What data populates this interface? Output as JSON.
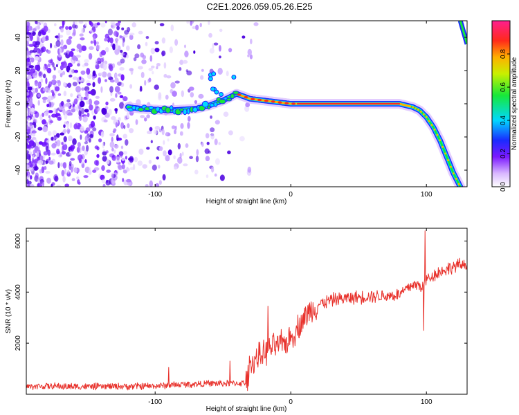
{
  "title": "C2E1.2026.059.05.26.E25",
  "chart_data": [
    {
      "type": "heatmap",
      "title": "C2E1.2026.059.05.26.E25",
      "xlabel": "Height of straight line (km)",
      "ylabel": "Frequency (Hz)",
      "xlim": [
        -195,
        130
      ],
      "ylim": [
        -50,
        50
      ],
      "x_ticks": [
        -100,
        0,
        100
      ],
      "y_ticks": [
        -40,
        -20,
        0,
        20,
        40
      ],
      "colorbar": {
        "label": "Normalized spectral amplitude",
        "range": [
          0.0,
          1.0
        ],
        "ticks": [
          0.0,
          0.2,
          0.4,
          0.6,
          0.8
        ],
        "colormap": "white-purple-blue-cyan-green-yellow-orange-red-magenta"
      },
      "ridge": {
        "x": [
          -120,
          -110,
          -100,
          -90,
          -80,
          -70,
          -60,
          -50,
          -45,
          -40,
          -30,
          -20,
          -10,
          0,
          10,
          20,
          40,
          60,
          80,
          85,
          90,
          95,
          100,
          105,
          110,
          115,
          120,
          125
        ],
        "y": [
          -2,
          -3,
          -3.5,
          -4,
          -3.5,
          -3,
          -1,
          2,
          4,
          6,
          3,
          2,
          1,
          0,
          0,
          0,
          0,
          0,
          0,
          -1,
          -2,
          -4,
          -8,
          -14,
          -22,
          -32,
          -42,
          -50
        ]
      },
      "ridge_upper_branch": {
        "x": [
          125,
          130
        ],
        "y": [
          50,
          36
        ]
      }
    },
    {
      "type": "line",
      "xlabel": "Height of straight line (km)",
      "ylabel": "SNR (10 * v/v)",
      "xlim": [
        -195,
        130
      ],
      "ylim": [
        0,
        6500
      ],
      "x_ticks": [
        -100,
        0,
        100
      ],
      "y_ticks": [
        2000,
        4000,
        6000
      ],
      "color": "#e8322c",
      "x": [
        -195,
        -180,
        -160,
        -140,
        -120,
        -100,
        -80,
        -60,
        -40,
        -33,
        -30,
        -25,
        -20,
        -15,
        -10,
        -5,
        0,
        5,
        10,
        15,
        20,
        30,
        40,
        50,
        60,
        70,
        80,
        85,
        90,
        95,
        98,
        100,
        103,
        110,
        120,
        130
      ],
      "y": [
        300,
        320,
        300,
        300,
        310,
        320,
        380,
        420,
        430,
        440,
        1200,
        1400,
        1600,
        1800,
        1900,
        2000,
        2200,
        2600,
        3000,
        3300,
        3500,
        3700,
        3750,
        3800,
        3850,
        3850,
        3900,
        4100,
        4300,
        4250,
        4200,
        4500,
        4600,
        4800,
        5000,
        5100
      ],
      "spikes": [
        {
          "x": 99,
          "y": 6400
        },
        {
          "x": 98,
          "y": 2500
        },
        {
          "x": -17,
          "y": 3450
        },
        {
          "x": -90,
          "y": 1050
        },
        {
          "x": -45,
          "y": 1300
        }
      ]
    }
  ]
}
